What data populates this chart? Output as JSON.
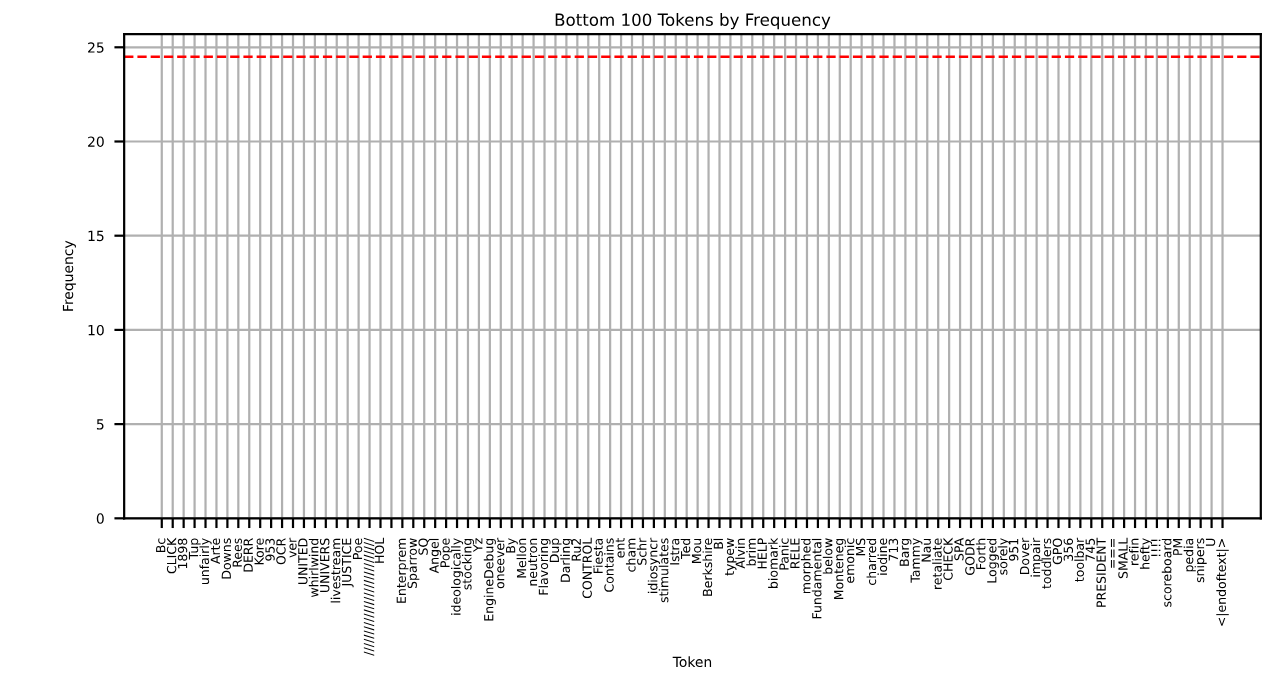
{
  "chart_data": {
    "type": "bar",
    "title": "Bottom 100 Tokens by Frequency",
    "xlabel": "Token",
    "ylabel": "Frequency",
    "categories": [
      "Bc",
      "CLICK",
      "1898",
      "Tup",
      "unfairly",
      "Arte",
      "Downs",
      "Rees",
      "DERR",
      "Kore",
      "953",
      "OCR",
      "ver",
      "UNITED",
      "whirlwind",
      "UNIVERS",
      "livestream",
      "JUSTICE",
      "Poe",
      "////////////////////////////",
      "HOL",
      null,
      "Enterprem",
      "Sparrow",
      "SQ",
      "Angel",
      "Pope",
      "ideologically",
      "stocking",
      "Yz",
      "EngineDebug",
      "oneever",
      "By",
      "Mellon",
      "neutron",
      "Flavoring",
      "Dup",
      "Darling",
      "Ru2",
      "CONTROL",
      "Fiesta",
      "Contains",
      "ent",
      "cham",
      "Schr",
      "idiosyncr",
      "stimulates",
      "Istra",
      "Ted",
      "Mou",
      "Berkshire",
      "Bl",
      "typew",
      "Alvin",
      "brim",
      "HELP",
      "biomark",
      "Panic",
      "RELE",
      "morphed",
      "Fundamental",
      "below",
      "Monteneg",
      "emonic",
      "MS",
      "charred",
      "iodine",
      "713",
      "Barg",
      "Tammy",
      "Nau",
      "retaliate",
      "CHECK",
      "SPA",
      "GODR",
      "Forth",
      "Logged",
      "sorely",
      "951",
      "Dover",
      "impair",
      "toddlers",
      "GPO",
      "356",
      "toolbar",
      "745",
      "PRESIDENT",
      "===",
      "SMALL",
      "refin",
      "hefty",
      "!!!!",
      "scoreboard",
      "PM",
      "pedia",
      "snipers",
      "U",
      "<|endoftext|>"
    ],
    "values": [
      0,
      0,
      0,
      0,
      0,
      0,
      0,
      0,
      0,
      0,
      0,
      0,
      0,
      0,
      0,
      0,
      0,
      0,
      0,
      0,
      0,
      0,
      0,
      0,
      0,
      0,
      0,
      0,
      0,
      0,
      0,
      0,
      0,
      0,
      0,
      0,
      0,
      0,
      0,
      0,
      0,
      0,
      0,
      0,
      0,
      0,
      0,
      0,
      0,
      0,
      0,
      0,
      0,
      0,
      0,
      0,
      0,
      0,
      0,
      0,
      0,
      0,
      0,
      0,
      0,
      0,
      0,
      0,
      0,
      0,
      0,
      0,
      0,
      0,
      0,
      0,
      0,
      0,
      0,
      0,
      0,
      0,
      0,
      0,
      0,
      0,
      0,
      0,
      0,
      0,
      0,
      0,
      0,
      0,
      0,
      0,
      0,
      0
    ],
    "ylim": [
      0,
      25.7
    ],
    "yticks": [
      0,
      5,
      10,
      15,
      20,
      25
    ],
    "grid": true,
    "ref_lines": [
      {
        "axis": "y",
        "value": 24.5,
        "color": "#ff0000",
        "line_style": "dashed"
      }
    ]
  }
}
